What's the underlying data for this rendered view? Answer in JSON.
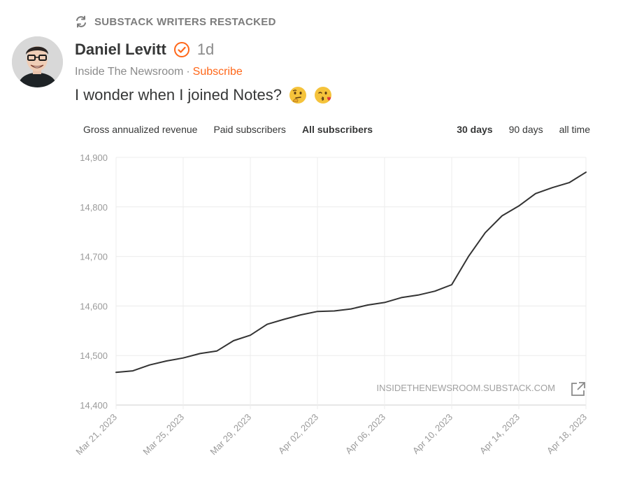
{
  "restack": {
    "label": "SUBSTACK WRITERS RESTACKED",
    "icon": "restack-icon"
  },
  "author": {
    "name": "Daniel Levitt",
    "verified_icon": "verified-check-icon",
    "time": "1d"
  },
  "publication": {
    "name": "Inside The Newsroom",
    "separator": "·",
    "subscribe": "Subscribe"
  },
  "post": {
    "text": "I wonder when I joined Notes?",
    "emojis": [
      "thinking-face-emoji",
      "kissing-wink-emoji"
    ]
  },
  "chart_tabs": [
    "Gross annualized revenue",
    "Paid subscribers",
    "All subscribers"
  ],
  "active_chart_tab": "All subscribers",
  "range_tabs": [
    "30 days",
    "90 days",
    "all time"
  ],
  "active_range_tab": "30 days",
  "colors": {
    "accent": "#ff6719",
    "line": "#333333",
    "grid": "#ececec"
  },
  "chart_data": {
    "type": "line",
    "title": "",
    "xlabel": "",
    "ylabel": "",
    "ylim": [
      14400,
      14900
    ],
    "yticks": [
      "14,400",
      "14,500",
      "14,600",
      "14,700",
      "14,800",
      "14,900"
    ],
    "xtick_labels": [
      "Mar 21, 2023",
      "Mar 25, 2023",
      "Mar 29, 2023",
      "Apr 02, 2023",
      "Apr 06, 2023",
      "Apr 10, 2023",
      "Apr 14, 2023",
      "Apr 18, 2023"
    ],
    "grid": true,
    "watermark": "INSIDETHENEWSROOM.SUBSTACK.COM",
    "series": [
      {
        "x": [
          "Mar 21, 2023",
          "Mar 22, 2023",
          "Mar 23, 2023",
          "Mar 24, 2023",
          "Mar 25, 2023",
          "Mar 26, 2023",
          "Mar 27, 2023",
          "Mar 28, 2023",
          "Mar 29, 2023",
          "Mar 30, 2023",
          "Mar 31, 2023",
          "Apr 01, 2023",
          "Apr 02, 2023",
          "Apr 03, 2023",
          "Apr 04, 2023",
          "Apr 05, 2023",
          "Apr 06, 2023",
          "Apr 07, 2023",
          "Apr 08, 2023",
          "Apr 09, 2023",
          "Apr 10, 2023",
          "Apr 11, 2023",
          "Apr 12, 2023",
          "Apr 13, 2023",
          "Apr 14, 2023",
          "Apr 15, 2023",
          "Apr 16, 2023",
          "Apr 17, 2023",
          "Apr 18, 2023"
        ],
        "values": [
          14466,
          14469,
          14481,
          14489,
          14495,
          14504,
          14509,
          14530,
          14541,
          14563,
          14573,
          14582,
          14589,
          14590,
          14594,
          14602,
          14607,
          14617,
          14622,
          14630,
          14643,
          14700,
          14748,
          14782,
          14802,
          14827,
          14839,
          14849,
          14870
        ]
      }
    ]
  }
}
